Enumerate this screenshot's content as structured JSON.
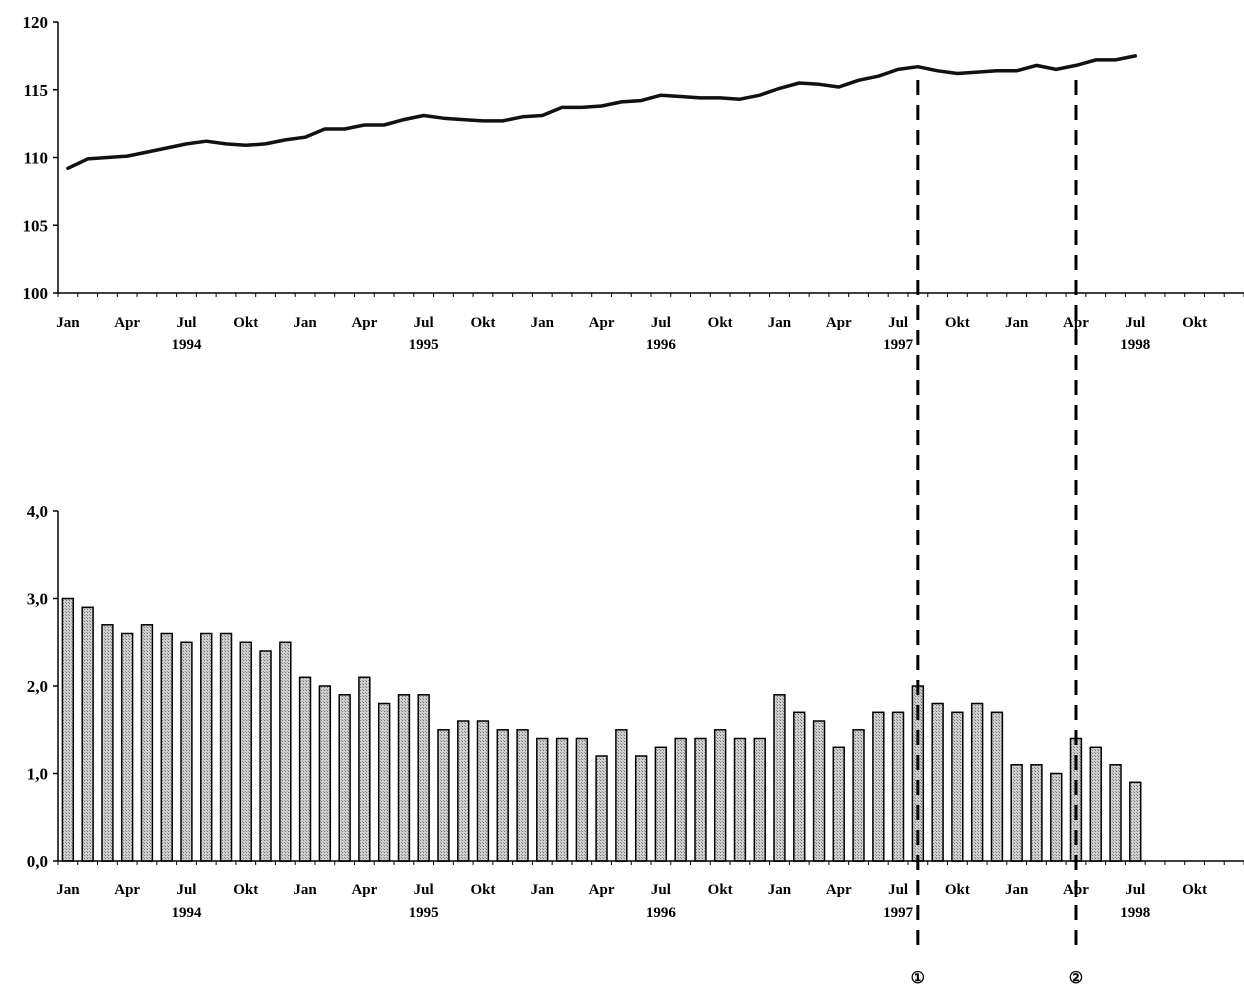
{
  "chart_data": [
    {
      "type": "line",
      "title": "",
      "xlabel": "",
      "ylabel": "",
      "ylim": [
        100,
        120
      ],
      "yticks": [
        "100",
        "105",
        "110",
        "115",
        "120"
      ],
      "xtick_months": [
        "Jan",
        "Apr",
        "Jul",
        "Okt",
        "Jan",
        "Apr",
        "Jul",
        "Okt",
        "Jan",
        "Apr",
        "Jul",
        "Okt",
        "Jan",
        "Apr",
        "Jul",
        "Okt",
        "Jan",
        "Apr",
        "Jul",
        "Okt"
      ],
      "xtick_years": [
        {
          "label": "1994",
          "month_index": 6
        },
        {
          "label": "1995",
          "month_index": 18
        },
        {
          "label": "1996",
          "month_index": 30
        },
        {
          "label": "1997",
          "month_index": 42
        },
        {
          "label": "1998",
          "month_index": 54
        }
      ],
      "x_start": "1994-01",
      "x_end": "1998-12",
      "series": [
        {
          "values": [
            109.2,
            109.9,
            110.0,
            110.1,
            110.4,
            110.7,
            111.0,
            111.2,
            111.0,
            110.9,
            111.0,
            111.3,
            111.5,
            112.1,
            112.1,
            112.4,
            112.4,
            112.8,
            113.1,
            112.9,
            112.8,
            112.7,
            112.7,
            113.0,
            113.1,
            113.7,
            113.7,
            113.8,
            114.1,
            114.2,
            114.6,
            114.5,
            114.4,
            114.4,
            114.3,
            114.6,
            115.1,
            115.5,
            115.4,
            115.2,
            115.7,
            116.0,
            116.5,
            116.7,
            116.4,
            116.2,
            116.3,
            116.4,
            116.4,
            116.8,
            116.5,
            116.8,
            117.2,
            117.2,
            117.5
          ]
        }
      ]
    },
    {
      "type": "bar",
      "title": "",
      "xlabel": "",
      "ylabel": "",
      "ylim": [
        0,
        4
      ],
      "yticks": [
        "0,0",
        "1,0",
        "2,0",
        "3,0",
        "4,0"
      ],
      "xtick_months": [
        "Jan",
        "Apr",
        "Jul",
        "Okt",
        "Jan",
        "Apr",
        "Jul",
        "Okt",
        "Jan",
        "Apr",
        "Jul",
        "Okt",
        "Jan",
        "Apr",
        "Jul",
        "Okt",
        "Jan",
        "Apr",
        "Jul",
        "Okt"
      ],
      "xtick_years": [
        {
          "label": "1994",
          "month_index": 6
        },
        {
          "label": "1995",
          "month_index": 18
        },
        {
          "label": "1996",
          "month_index": 30
        },
        {
          "label": "1997",
          "month_index": 42
        },
        {
          "label": "1998",
          "month_index": 54
        }
      ],
      "x_start": "1994-01",
      "x_end": "1998-12",
      "series": [
        {
          "values": [
            3.0,
            2.9,
            2.7,
            2.6,
            2.7,
            2.6,
            2.5,
            2.6,
            2.6,
            2.5,
            2.4,
            2.5,
            2.1,
            2.0,
            1.9,
            2.1,
            1.8,
            1.9,
            1.9,
            1.5,
            1.6,
            1.6,
            1.5,
            1.5,
            1.4,
            1.4,
            1.4,
            1.2,
            1.5,
            1.2,
            1.3,
            1.4,
            1.4,
            1.5,
            1.4,
            1.4,
            1.9,
            1.7,
            1.6,
            1.3,
            1.5,
            1.7,
            1.7,
            2.0,
            1.8,
            1.7,
            1.8,
            1.7,
            1.1,
            1.1,
            1.0,
            1.4,
            1.3,
            1.1,
            0.9
          ]
        }
      ]
    }
  ],
  "markers": [
    {
      "label": "①",
      "month": "1997-08"
    },
    {
      "label": "②",
      "month": "1998-04"
    }
  ],
  "colors": {
    "line": "#111111",
    "bar_fill": "#b8b8b8",
    "bar_stroke": "#000000",
    "axis": "#000000",
    "marker": "#000000"
  }
}
